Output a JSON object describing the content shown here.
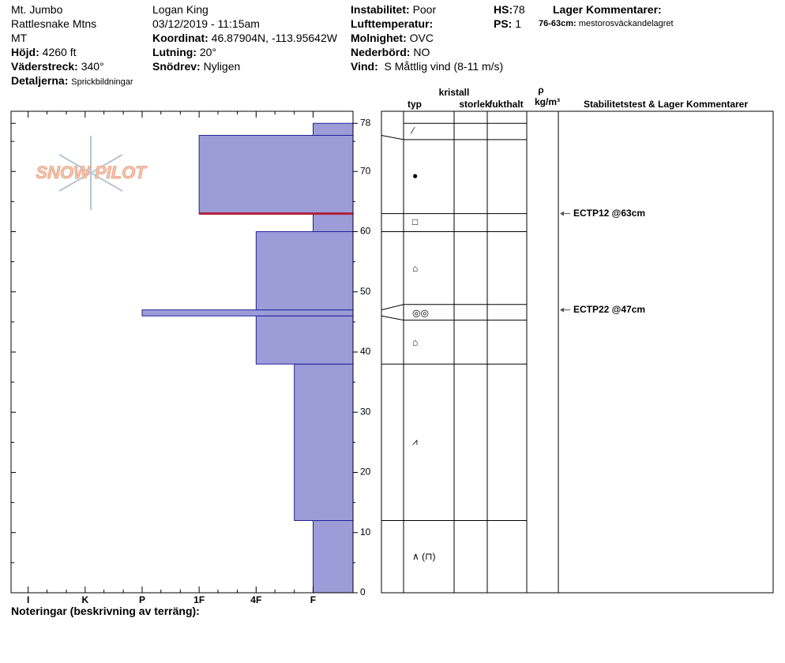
{
  "header": {
    "site": "Mt. Jumbo",
    "range": "Rattlesnake Mtns",
    "state": "MT",
    "elevation": {
      "label": "Höjd:",
      "value": "4260 ft"
    },
    "aspect": {
      "label": "Väderstreck:",
      "value": "340°"
    },
    "details": {
      "label": "Detaljerna:",
      "value": "Sprickbildningar"
    },
    "observer": "Logan King",
    "datetime": "03/12/2019 - 11:15am",
    "coordinates": {
      "label": "Koordinat:",
      "value": "46.87904N, -113.95642W"
    },
    "slope": {
      "label": "Lutning:",
      "value": "20°"
    },
    "wind_loading": {
      "label": "Snödrev:",
      "value": "Nyligen"
    },
    "instability": {
      "label": "Instabilitet:",
      "value": "Poor"
    },
    "air_temp": {
      "label": "Lufttemperatur:"
    },
    "sky": {
      "label": "Molnighet:",
      "value": "OVC"
    },
    "precip": {
      "label": "Nederbörd:",
      "value": "NO"
    },
    "wind": {
      "label": "Vind:",
      "value": "S Måttlig vind (8-11 m/s)"
    },
    "hs": {
      "label": "HS:",
      "value": "78"
    },
    "ps": {
      "label": "PS:",
      "value": "1"
    },
    "layer_comments_title": "Lager Kommentarer:",
    "layer_comment": {
      "label": "76-63cm:",
      "value": "mestorosväckandelagret"
    }
  },
  "logo": "SNOW PILOT",
  "notes_label": "Noteringar (beskrivning av terräng):",
  "chart_data": {
    "type": "profile",
    "ylim": [
      0,
      80
    ],
    "yticks": [
      0,
      10,
      20,
      30,
      40,
      50,
      60,
      70,
      78
    ],
    "yticks_minor": [
      5,
      15,
      25,
      35,
      45,
      55,
      65,
      75
    ],
    "xlim": [
      6.3,
      0.3
    ],
    "xticks": [
      {
        "value": 6,
        "label": "I"
      },
      {
        "value": 5,
        "label": "K"
      },
      {
        "value": 4,
        "label": "P"
      },
      {
        "value": 3,
        "label": "1F"
      },
      {
        "value": 2,
        "label": "4F"
      },
      {
        "value": 1,
        "label": "F"
      }
    ],
    "xticks_minor": [
      5.67,
      5.33,
      4.67,
      4.33,
      3.67,
      3.33,
      2.67,
      2.33,
      1.67,
      1.33
    ],
    "color": "#9c9cd8",
    "layer_bottoms": [
      0,
      12,
      38,
      46,
      47,
      60,
      63,
      76
    ],
    "layer_tops": [
      12,
      38,
      46,
      47,
      60,
      63,
      76,
      78
    ],
    "hardness": [
      1,
      1.33,
      2,
      4,
      2,
      1,
      3,
      1
    ],
    "weak_layer": 63,
    "weak_layer_color": "#b0203a",
    "table_headers": {
      "crystal": "kristall",
      "type": "typ",
      "size": "storlek",
      "moisture": "fukthalt",
      "rho": "ρ",
      "density_unit": "kg/m³",
      "stability": "Stabilitetstest & Lager Kommentarer"
    },
    "grain_boundaries": [
      12,
      38,
      45.3,
      47.9,
      60,
      63,
      75.3,
      78
    ],
    "grain_heights": [
      76.7,
      69.2,
      61.5,
      53.8,
      46.4,
      41.5,
      25,
      5.9
    ],
    "grain_symbols": [
      "⁄",
      "●",
      "□",
      "⌂",
      "◎◎",
      "⌂",
      "⩘",
      "∧ (⊓)"
    ],
    "test_heights": [
      63,
      47
    ],
    "test_labels": [
      "ECTP12 @63cm",
      "ECTP22 @47cm"
    ]
  }
}
